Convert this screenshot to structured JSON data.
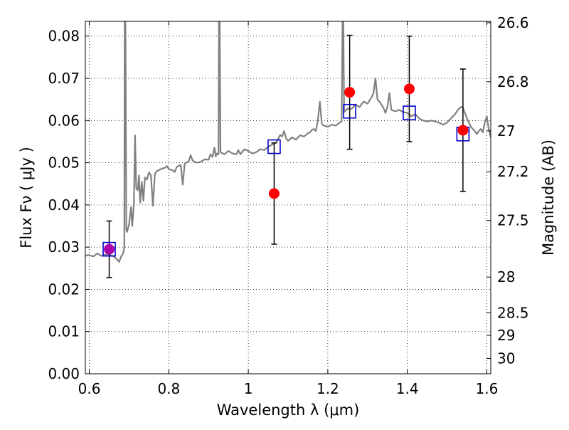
{
  "chart_data": {
    "type": "scatter",
    "xlabel": "Wavelength  λ (μm)",
    "ylabel": "Flux  Fν  ( μJy )",
    "ylabel_right": "Magnitude (AB)",
    "xlim": [
      0.59,
      1.61
    ],
    "ylim": [
      0.0,
      0.0835
    ],
    "grid": true,
    "x_ticks": [
      {
        "value": 0.6,
        "label": "0.6"
      },
      {
        "value": 0.8,
        "label": "0.8"
      },
      {
        "value": 1.0,
        "label": "1"
      },
      {
        "value": 1.2,
        "label": "1.2"
      },
      {
        "value": 1.4,
        "label": "1.4"
      },
      {
        "value": 1.6,
        "label": "1.6"
      }
    ],
    "y_ticks": [
      {
        "value": 0.0,
        "label": "0.00"
      },
      {
        "value": 0.01,
        "label": "0.01"
      },
      {
        "value": 0.02,
        "label": "0.02"
      },
      {
        "value": 0.03,
        "label": "0.03"
      },
      {
        "value": 0.04,
        "label": "0.04"
      },
      {
        "value": 0.05,
        "label": "0.05"
      },
      {
        "value": 0.06,
        "label": "0.06"
      },
      {
        "value": 0.07,
        "label": "0.07"
      },
      {
        "value": 0.08,
        "label": "0.08"
      }
    ],
    "right_ticks": [
      {
        "mag": 26.6,
        "label": "26.6"
      },
      {
        "mag": 26.8,
        "label": "26.8"
      },
      {
        "mag": 27.0,
        "label": "27"
      },
      {
        "mag": 27.2,
        "label": "27.2"
      },
      {
        "mag": 27.5,
        "label": "27.5"
      },
      {
        "mag": 28.0,
        "label": "28"
      },
      {
        "mag": 28.5,
        "label": "28.5"
      },
      {
        "mag": 29.0,
        "label": "29"
      },
      {
        "mag": 30.0,
        "label": "30"
      }
    ],
    "colors": {
      "spectrum": "#808080",
      "observed": "#ff0000",
      "model": "#0000cc",
      "errorbar": "#000000",
      "overlap": "#aa00aa"
    },
    "series": [
      {
        "kind": "spectrum",
        "points": [
          [
            0.59,
            0.028
          ],
          [
            0.6,
            0.0281
          ],
          [
            0.61,
            0.0278
          ],
          [
            0.62,
            0.0285
          ],
          [
            0.63,
            0.0279
          ],
          [
            0.64,
            0.0282
          ],
          [
            0.65,
            0.0282
          ],
          [
            0.66,
            0.0279
          ],
          [
            0.67,
            0.0271
          ],
          [
            0.675,
            0.0265
          ],
          [
            0.68,
            0.0278
          ],
          [
            0.685,
            0.0285
          ],
          [
            0.688,
            0.03
          ],
          [
            0.689,
            0.0835
          ],
          [
            0.691,
            0.0835
          ],
          [
            0.693,
            0.034
          ],
          [
            0.695,
            0.0336
          ],
          [
            0.7,
            0.0355
          ],
          [
            0.705,
            0.0395
          ],
          [
            0.708,
            0.035
          ],
          [
            0.712,
            0.04
          ],
          [
            0.715,
            0.0565
          ],
          [
            0.718,
            0.044
          ],
          [
            0.722,
            0.0435
          ],
          [
            0.725,
            0.047
          ],
          [
            0.728,
            0.0405
          ],
          [
            0.732,
            0.0455
          ],
          [
            0.736,
            0.041
          ],
          [
            0.74,
            0.0465
          ],
          [
            0.745,
            0.046
          ],
          [
            0.75,
            0.0477
          ],
          [
            0.755,
            0.047
          ],
          [
            0.76,
            0.0398
          ],
          [
            0.765,
            0.0474
          ],
          [
            0.77,
            0.048
          ],
          [
            0.78,
            0.0485
          ],
          [
            0.79,
            0.0488
          ],
          [
            0.795,
            0.0492
          ],
          [
            0.8,
            0.0485
          ],
          [
            0.81,
            0.0482
          ],
          [
            0.815,
            0.0478
          ],
          [
            0.82,
            0.049
          ],
          [
            0.83,
            0.0495
          ],
          [
            0.835,
            0.0448
          ],
          [
            0.84,
            0.0498
          ],
          [
            0.85,
            0.0503
          ],
          [
            0.855,
            0.0518
          ],
          [
            0.86,
            0.0505
          ],
          [
            0.87,
            0.05
          ],
          [
            0.88,
            0.0502
          ],
          [
            0.89,
            0.0508
          ],
          [
            0.9,
            0.0507
          ],
          [
            0.905,
            0.052
          ],
          [
            0.91,
            0.0514
          ],
          [
            0.915,
            0.0536
          ],
          [
            0.918,
            0.0515
          ],
          [
            0.921,
            0.0522
          ],
          [
            0.925,
            0.052
          ],
          [
            0.926,
            0.0835
          ],
          [
            0.928,
            0.0835
          ],
          [
            0.93,
            0.0525
          ],
          [
            0.94,
            0.052
          ],
          [
            0.95,
            0.0528
          ],
          [
            0.96,
            0.0522
          ],
          [
            0.97,
            0.052
          ],
          [
            0.975,
            0.053
          ],
          [
            0.98,
            0.052
          ],
          [
            0.99,
            0.0532
          ],
          [
            1.0,
            0.0528
          ],
          [
            1.01,
            0.0522
          ],
          [
            1.02,
            0.0525
          ],
          [
            1.03,
            0.0532
          ],
          [
            1.04,
            0.053
          ],
          [
            1.05,
            0.0538
          ],
          [
            1.06,
            0.0543
          ],
          [
            1.07,
            0.0548
          ],
          [
            1.075,
            0.0556
          ],
          [
            1.08,
            0.0566
          ],
          [
            1.085,
            0.0562
          ],
          [
            1.09,
            0.0575
          ],
          [
            1.095,
            0.0558
          ],
          [
            1.1,
            0.0552
          ],
          [
            1.11,
            0.056
          ],
          [
            1.12,
            0.0555
          ],
          [
            1.13,
            0.0565
          ],
          [
            1.14,
            0.0562
          ],
          [
            1.15,
            0.057
          ],
          [
            1.155,
            0.0572
          ],
          [
            1.16,
            0.0578
          ],
          [
            1.165,
            0.058
          ],
          [
            1.17,
            0.0575
          ],
          [
            1.175,
            0.06
          ],
          [
            1.18,
            0.0645
          ],
          [
            1.185,
            0.0592
          ],
          [
            1.19,
            0.0588
          ],
          [
            1.2,
            0.0585
          ],
          [
            1.21,
            0.059
          ],
          [
            1.22,
            0.0588
          ],
          [
            1.23,
            0.0595
          ],
          [
            1.235,
            0.0598
          ],
          [
            1.237,
            0.0835
          ],
          [
            1.239,
            0.0835
          ],
          [
            1.241,
            0.062
          ],
          [
            1.25,
            0.0628
          ],
          [
            1.26,
            0.0628
          ],
          [
            1.27,
            0.0638
          ],
          [
            1.28,
            0.0632
          ],
          [
            1.29,
            0.0645
          ],
          [
            1.3,
            0.064
          ],
          [
            1.31,
            0.0655
          ],
          [
            1.315,
            0.0665
          ],
          [
            1.32,
            0.07
          ],
          [
            1.325,
            0.065
          ],
          [
            1.33,
            0.0645
          ],
          [
            1.34,
            0.063
          ],
          [
            1.345,
            0.0618
          ],
          [
            1.35,
            0.0632
          ],
          [
            1.355,
            0.0665
          ],
          [
            1.36,
            0.0625
          ],
          [
            1.37,
            0.0622
          ],
          [
            1.38,
            0.0625
          ],
          [
            1.39,
            0.062
          ],
          [
            1.4,
            0.0618
          ],
          [
            1.41,
            0.061
          ],
          [
            1.42,
            0.0615
          ],
          [
            1.43,
            0.0605
          ],
          [
            1.44,
            0.06
          ],
          [
            1.45,
            0.0598
          ],
          [
            1.46,
            0.06
          ],
          [
            1.47,
            0.0598
          ],
          [
            1.48,
            0.0595
          ],
          [
            1.49,
            0.059
          ],
          [
            1.5,
            0.0595
          ],
          [
            1.51,
            0.0605
          ],
          [
            1.52,
            0.0615
          ],
          [
            1.53,
            0.0628
          ],
          [
            1.535,
            0.0632
          ],
          [
            1.54,
            0.063
          ],
          [
            1.545,
            0.0618
          ],
          [
            1.55,
            0.0605
          ],
          [
            1.56,
            0.0585
          ],
          [
            1.57,
            0.0575
          ],
          [
            1.575,
            0.0568
          ],
          [
            1.58,
            0.0575
          ],
          [
            1.585,
            0.058
          ],
          [
            1.59,
            0.0572
          ],
          [
            1.595,
            0.0595
          ],
          [
            1.6,
            0.061
          ],
          [
            1.605,
            0.058
          ],
          [
            1.61,
            0.056
          ]
        ]
      },
      {
        "kind": "observed",
        "points": [
          {
            "x": 0.65,
            "y": 0.0295,
            "err": 0.0067
          },
          {
            "x": 1.065,
            "y": 0.0427,
            "err": 0.012
          },
          {
            "x": 1.255,
            "y": 0.0667,
            "err": 0.0135
          },
          {
            "x": 1.405,
            "y": 0.0675,
            "err": 0.0125
          },
          {
            "x": 1.54,
            "y": 0.0577,
            "err": 0.0145
          }
        ]
      },
      {
        "kind": "model",
        "points": [
          {
            "x": 0.65,
            "y": 0.0295
          },
          {
            "x": 1.065,
            "y": 0.0538
          },
          {
            "x": 1.255,
            "y": 0.0622
          },
          {
            "x": 1.405,
            "y": 0.0618
          },
          {
            "x": 1.54,
            "y": 0.0568
          }
        ]
      }
    ]
  }
}
